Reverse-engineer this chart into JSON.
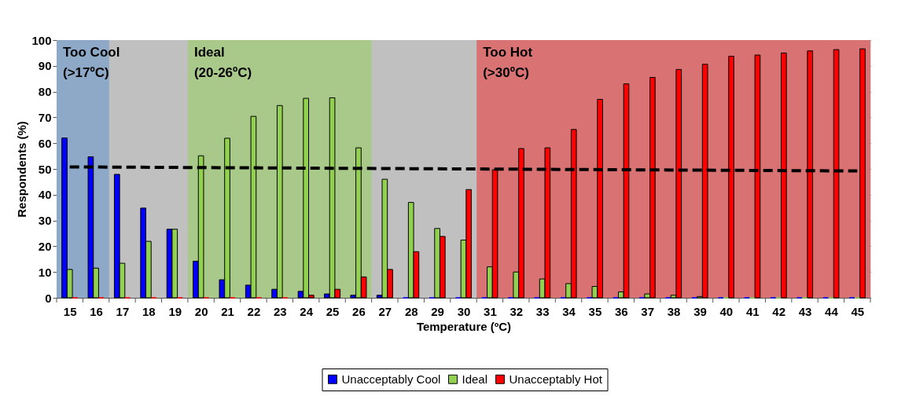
{
  "chart_data": {
    "type": "bar",
    "xlabel": "Temperature (ºC)",
    "ylabel": "Respondents (%)",
    "categories": [
      "15",
      "16",
      "17",
      "18",
      "19",
      "20",
      "21",
      "22",
      "23",
      "24",
      "25",
      "26",
      "27",
      "28",
      "29",
      "30",
      "31",
      "32",
      "33",
      "34",
      "35",
      "36",
      "37",
      "38",
      "39",
      "40",
      "41",
      "42",
      "43",
      "44",
      "45"
    ],
    "series": [
      {
        "name": "Unacceptably Cool",
        "color": "#0000ff",
        "values": [
          62,
          54.7,
          47.9,
          34.8,
          26.6,
          14.2,
          7,
          4.9,
          3.3,
          2.5,
          1.5,
          1,
          1,
          0,
          0,
          0,
          0,
          0,
          0,
          0,
          0,
          0,
          0,
          0,
          0,
          0,
          0,
          0,
          0,
          0,
          0
        ]
      },
      {
        "name": "Ideal",
        "color": "#92d050",
        "values": [
          11,
          11.5,
          13.4,
          21.9,
          26.6,
          55.1,
          61.9,
          70.4,
          74.6,
          77.4,
          77.6,
          58.2,
          46,
          37,
          26.9,
          22.4,
          12,
          10,
          7.3,
          5.5,
          4.4,
          2.3,
          1.5,
          1,
          0.5,
          0,
          0,
          0,
          0,
          0,
          0
        ]
      },
      {
        "name": "Unacceptably Hot",
        "color": "#ff0000",
        "values": [
          0,
          0,
          0,
          0,
          0,
          0,
          0,
          0,
          0,
          1,
          3.3,
          8.1,
          11,
          17.9,
          23.8,
          42,
          49.7,
          57.9,
          58.2,
          65.3,
          77,
          83,
          85.5,
          88.6,
          90.6,
          93.7,
          94.2,
          95,
          95.8,
          96.3,
          96.6
        ]
      },
      {
        "type": "line",
        "color": "#000000",
        "line_style": "dashed",
        "x": [
          "15",
          "45"
        ],
        "values": [
          50.8,
          49.2
        ]
      }
    ],
    "bands": [
      {
        "axis": "x",
        "from": "15",
        "to": "16",
        "label": "Too Cool\n(>17ºC)",
        "color": "#8ea9c7"
      },
      {
        "axis": "x",
        "from": "20",
        "to": "26",
        "label": "Ideal\n(20-26ºC)",
        "color": "#a9c98a"
      },
      {
        "axis": "x",
        "from": "31",
        "to": "45",
        "label": "Too Hot\n(>30ºC)",
        "color": "#d97373"
      }
    ],
    "ylim": [
      0,
      100
    ],
    "yticks": [
      0,
      10,
      20,
      30,
      40,
      50,
      60,
      70,
      80,
      90,
      100
    ],
    "grid": "y",
    "legend": "bottom"
  }
}
